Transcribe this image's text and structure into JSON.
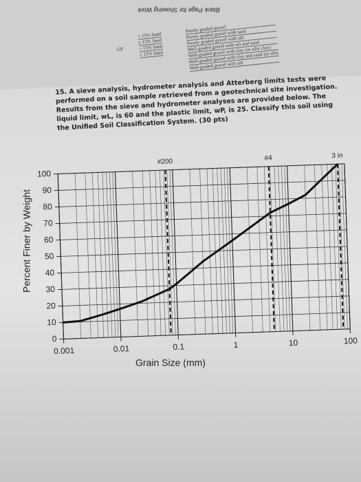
{
  "header": {
    "title": "Blank Page for Showing Work"
  },
  "table": {
    "group": "GP",
    "sand": [
      "< 15% Sand",
      "≥ 15% Sand",
      "< 15% Sand",
      "≥ 15% Sand"
    ],
    "names": [
      "Poorly graded gravel",
      "Poorly graded gravel with sand",
      "Poorly graded gravel with silt",
      "Well-graded gravel with silt and sand",
      "Well-graded gravel with clay (or silty clay)",
      "Well-graded gravel with clay and sand (or silty",
      "Well-graded gravel with silt"
    ]
  },
  "question": {
    "number": "15.",
    "text": "A sieve analysis, hydrometer analysis and Atterberg limits tests were performed on a soil sample retrieved from a geotechnical site investigation. Results from the sieve and hydrometer analyses are provided below. The liquid limit, wL, is 60 and the plastic limit, wP, is 25. Classify this soil using the Unified Soil Classification System. (30 pts)"
  },
  "chart_data": {
    "type": "line",
    "x_label": "Grain Size (mm)",
    "y_label": "Percent Finer by Weight",
    "x_scale": "log",
    "grid": true,
    "xlim": [
      0.001,
      100
    ],
    "xticks": [
      0.001,
      0.01,
      0.1,
      1,
      10,
      100
    ],
    "ylim": [
      0,
      100
    ],
    "yticks": [
      0,
      10,
      20,
      30,
      40,
      50,
      60,
      70,
      80,
      90,
      100
    ],
    "annotations": [
      {
        "text": "#200",
        "x": 0.075
      },
      {
        "text": "#4",
        "x": 4.75
      },
      {
        "text": "3 in",
        "x": 76
      }
    ],
    "series": [
      {
        "color": "#111111",
        "x": [
          0.001,
          0.002,
          0.005,
          0.01,
          0.024,
          0.075,
          0.1,
          0.3,
          1,
          4.75,
          10,
          20,
          76
        ],
        "values": [
          10,
          10.5,
          14,
          17,
          21,
          28,
          31,
          44,
          56,
          72,
          77,
          82,
          100
        ]
      }
    ]
  }
}
